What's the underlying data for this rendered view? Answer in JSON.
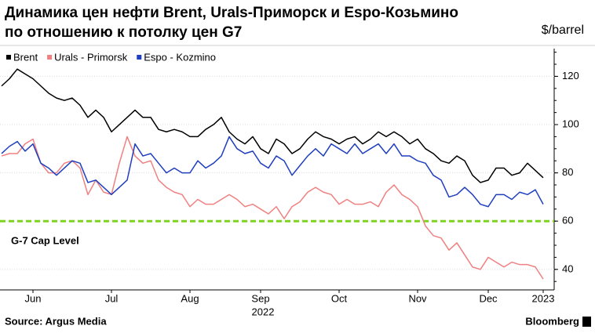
{
  "chart_data": {
    "type": "line",
    "title": "Динамика цен нефти Brent, Urals-Приморск и Espo-Козьмино\nпо отношению к потолку цен G7",
    "y_label": "$/barrel",
    "year_label": "2022",
    "source": "Source: Argus Media",
    "brand": "Bloomberg",
    "categories": [
      null,
      null,
      null,
      null,
      "Jun",
      null,
      null,
      null,
      null,
      null,
      null,
      null,
      null,
      null,
      "Jul",
      null,
      null,
      null,
      null,
      null,
      null,
      null,
      null,
      null,
      "Aug",
      null,
      null,
      null,
      null,
      null,
      null,
      null,
      null,
      "Sep",
      null,
      null,
      null,
      null,
      null,
      null,
      null,
      null,
      null,
      "Oct",
      null,
      null,
      null,
      null,
      null,
      null,
      null,
      null,
      null,
      "Nov",
      null,
      null,
      null,
      null,
      null,
      null,
      null,
      null,
      "Dec",
      null,
      null,
      null,
      null,
      null,
      null,
      "2023"
    ],
    "series": [
      {
        "name": "Brent",
        "color": "#000000",
        "values": [
          116,
          119,
          123,
          121,
          119,
          116,
          113,
          111,
          110,
          111,
          108,
          103,
          106,
          103,
          97,
          100,
          103,
          106,
          103,
          103,
          98,
          97,
          98,
          97,
          95,
          95,
          98,
          100,
          103,
          97,
          94,
          92,
          95,
          90,
          88,
          94,
          92,
          88,
          90,
          94,
          97,
          95,
          94,
          92,
          94,
          95,
          92,
          94,
          97,
          95,
          97,
          95,
          92,
          94,
          90,
          88,
          85,
          84,
          87,
          85,
          79,
          76,
          77,
          82,
          82,
          79,
          80,
          84,
          81,
          78
        ]
      },
      {
        "name": "Urals - Primorsk",
        "color": "#f08080",
        "values": [
          87,
          88,
          88,
          92,
          94,
          84,
          80,
          80,
          84,
          85,
          82,
          71,
          77,
          72,
          71,
          84,
          95,
          87,
          84,
          85,
          77,
          74,
          72,
          71,
          66,
          69,
          67,
          67,
          69,
          71,
          69,
          66,
          67,
          65,
          63,
          66,
          61,
          66,
          68,
          72,
          74,
          72,
          71,
          67,
          69,
          67,
          67,
          68,
          66,
          72,
          75,
          71,
          69,
          66,
          58,
          54,
          53,
          48,
          51,
          46,
          41,
          40,
          45,
          43,
          41,
          43,
          42,
          42,
          41,
          36
        ]
      },
      {
        "name": "Espo - Kozmino",
        "color": "#1f3fbf",
        "values": [
          88,
          91,
          93,
          89,
          92,
          84,
          82,
          79,
          82,
          85,
          84,
          76,
          77,
          74,
          71,
          74,
          77,
          92,
          87,
          88,
          84,
          80,
          82,
          80,
          80,
          85,
          82,
          84,
          87,
          95,
          90,
          88,
          89,
          84,
          82,
          87,
          85,
          79,
          83,
          87,
          90,
          87,
          92,
          90,
          88,
          92,
          88,
          90,
          92,
          88,
          92,
          87,
          87,
          85,
          84,
          79,
          77,
          70,
          71,
          74,
          71,
          67,
          66,
          71,
          71,
          69,
          72,
          71,
          73,
          67
        ]
      }
    ],
    "reference_line": {
      "value": 60,
      "label": "G-7 Cap Level",
      "color": "#7ed321"
    },
    "ylim": [
      31.5,
      131.5
    ],
    "yticks": [
      40,
      60,
      80,
      100,
      120
    ],
    "grid": true,
    "legend": "top-left"
  }
}
